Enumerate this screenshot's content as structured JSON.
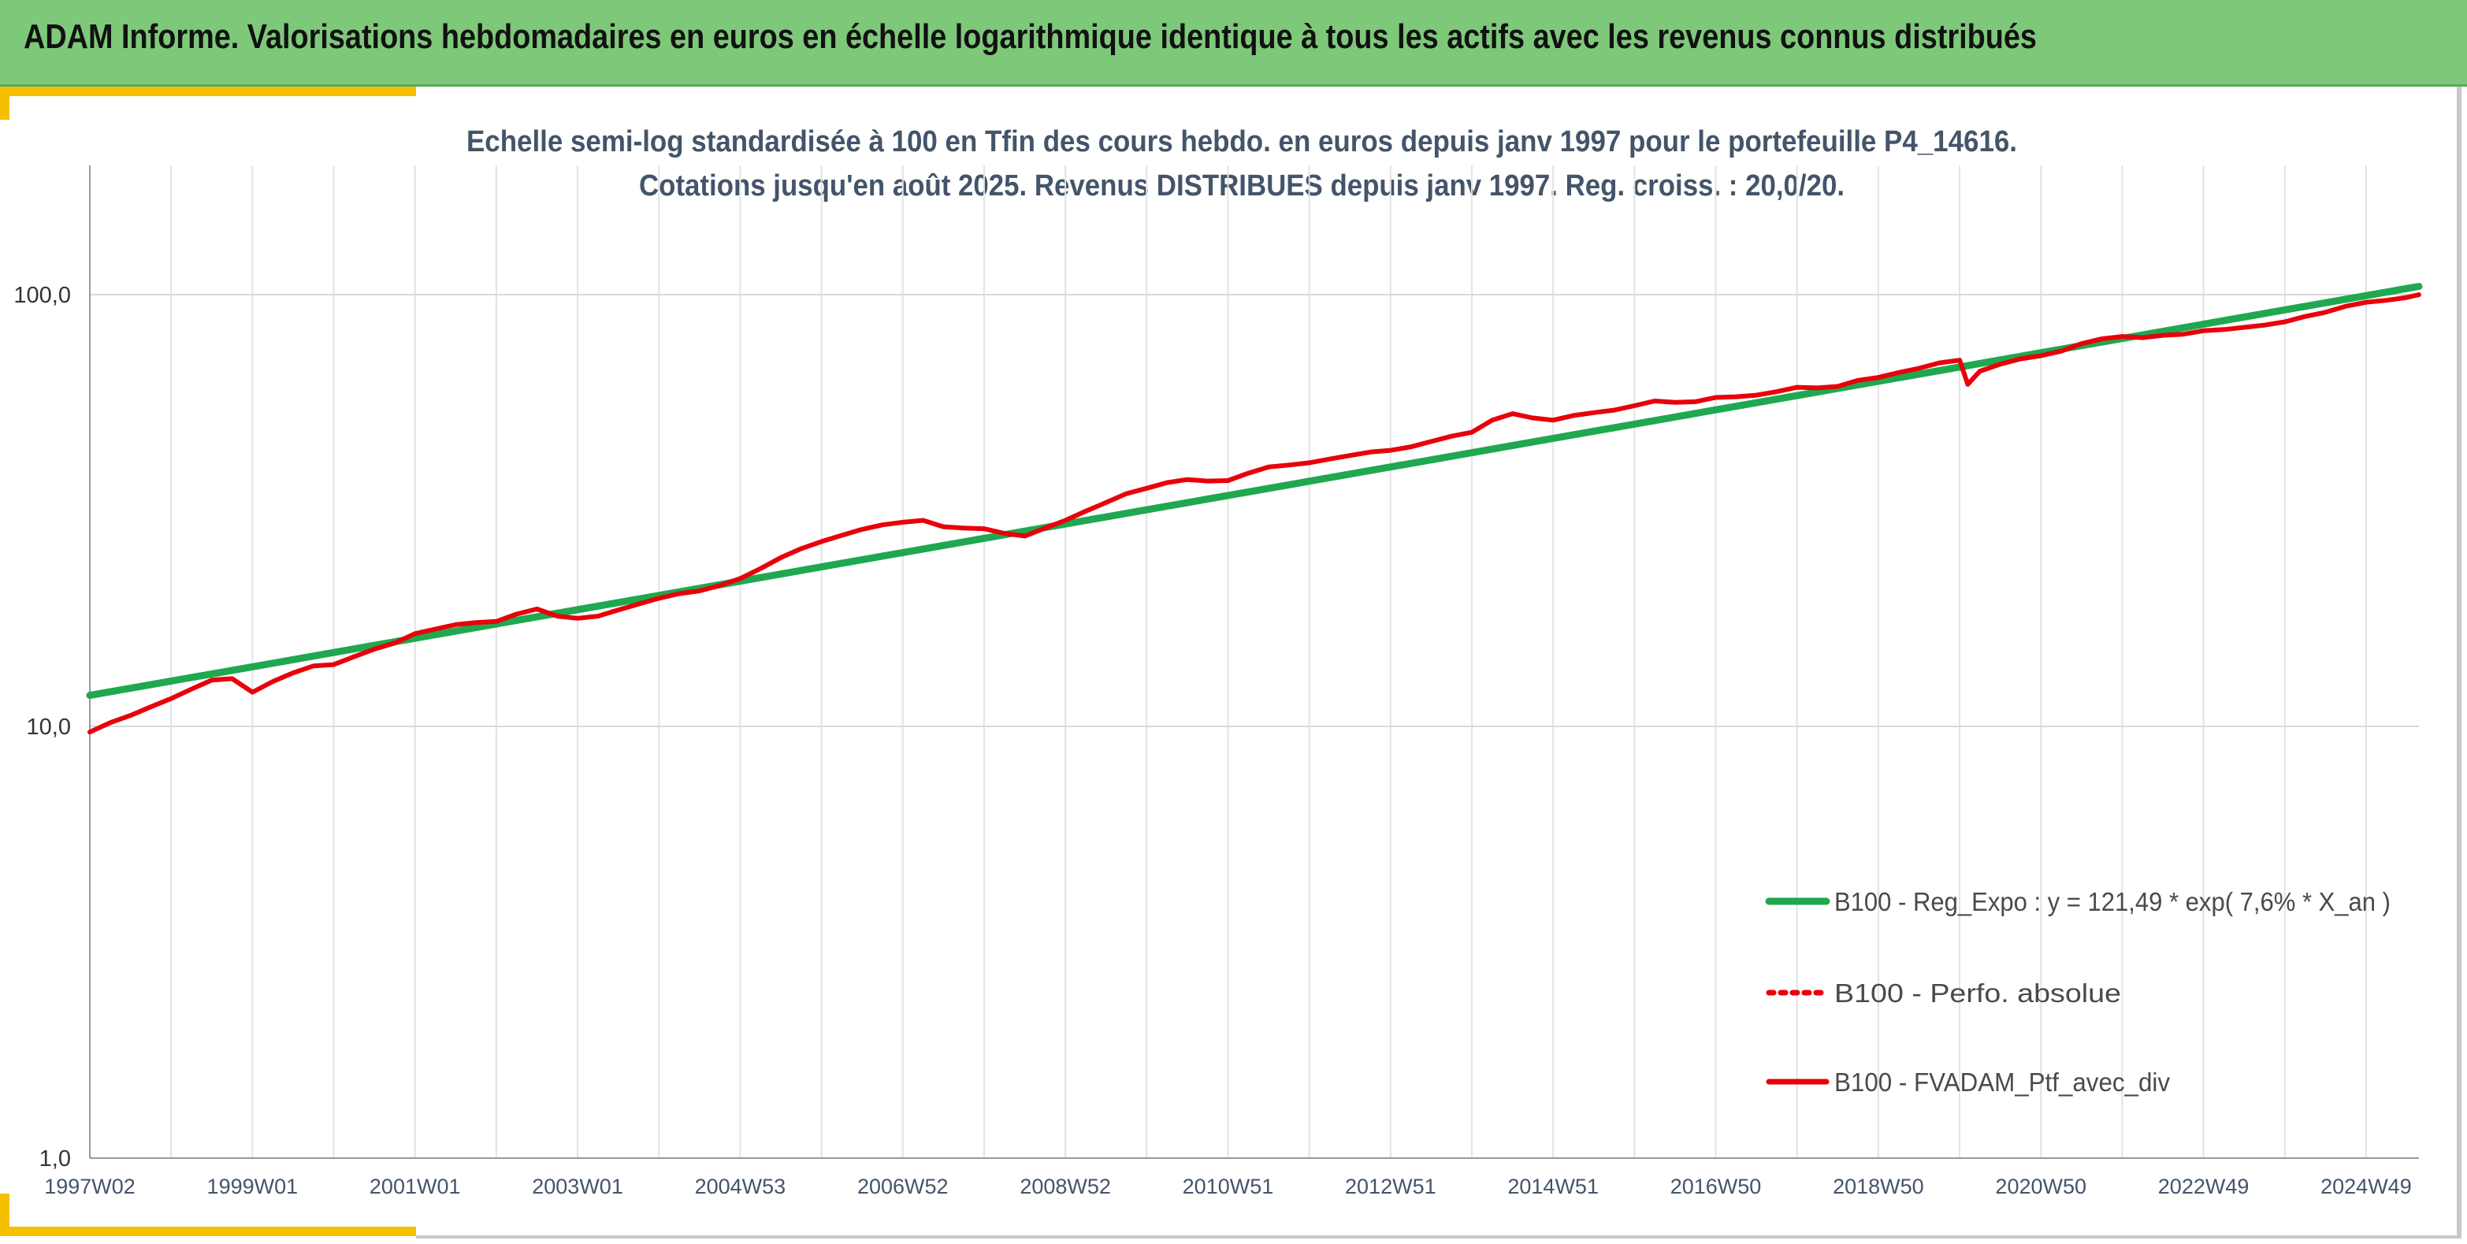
{
  "header": {
    "title": "ADAM Informe. Valorisations hebdomadaires en euros en échelle logarithmique identique à tous les actifs avec les revenus connus distribués"
  },
  "colors": {
    "header_bg": "#7ec87a",
    "accent": "#f5c000",
    "regression": "#1fa84f",
    "portfolio": "#e8000b"
  },
  "chart_data": {
    "type": "line",
    "title_lines": [
      "Echelle semi-log standardisée à 100 en Tfin des cours hebdo. en euros depuis janv 1997 pour le portefeuille P4_14616.",
      "Cotations jusqu'en août 2025. Revenus DISTRIBUES depuis janv 1997. Reg. croiss. : 20,0/20."
    ],
    "y_scale": "log",
    "ylim": [
      1,
      200
    ],
    "y_ticks": [
      {
        "value": 1,
        "label": "1,0"
      },
      {
        "value": 10,
        "label": "10,0"
      },
      {
        "value": 100,
        "label": "100,0"
      }
    ],
    "xlim": [
      1997.0,
      2025.65
    ],
    "x_ticks": [
      {
        "year": 1997.0,
        "label": "1997W02"
      },
      {
        "year": 1999.0,
        "label": "1999W01"
      },
      {
        "year": 2001.0,
        "label": "2001W01"
      },
      {
        "year": 2003.0,
        "label": "2003W01"
      },
      {
        "year": 2005.0,
        "label": "2004W53"
      },
      {
        "year": 2007.0,
        "label": "2006W52"
      },
      {
        "year": 2009.0,
        "label": "2008W52"
      },
      {
        "year": 2011.0,
        "label": "2010W51"
      },
      {
        "year": 2013.0,
        "label": "2012W51"
      },
      {
        "year": 2015.0,
        "label": "2014W51"
      },
      {
        "year": 2017.0,
        "label": "2016W50"
      },
      {
        "year": 2019.0,
        "label": "2018W50"
      },
      {
        "year": 2021.0,
        "label": "2020W50"
      },
      {
        "year": 2023.0,
        "label": "2022W49"
      },
      {
        "year": 2025.0,
        "label": "2024W49"
      }
    ],
    "legend_position": "right",
    "series": [
      {
        "name": "B100 - Reg_Expo : y = 121,49 * exp( 7,6% *  X_an )",
        "style": "solid-thick",
        "color": "#1fa84f",
        "x": [
          1997.0,
          2025.65
        ],
        "y": [
          11.8,
          104.5
        ]
      },
      {
        "name": "B100 - Perfo. absolue",
        "style": "dotted",
        "color": "#e8000b",
        "x": [],
        "y": []
      },
      {
        "name": "B100 - FVADAM_Ptf_avec_div",
        "style": "solid",
        "color": "#e8000b",
        "x": [
          1997.0,
          1997.25,
          1997.5,
          1997.75,
          1998.0,
          1998.25,
          1998.5,
          1998.75,
          1999.0,
          1999.25,
          1999.5,
          1999.75,
          2000.0,
          2000.25,
          2000.5,
          2000.75,
          2001.0,
          2001.25,
          2001.5,
          2001.75,
          2002.0,
          2002.25,
          2002.5,
          2002.75,
          2003.0,
          2003.25,
          2003.5,
          2003.75,
          2004.0,
          2004.25,
          2004.5,
          2004.75,
          2005.0,
          2005.25,
          2005.5,
          2005.75,
          2006.0,
          2006.25,
          2006.5,
          2006.75,
          2007.0,
          2007.25,
          2007.5,
          2007.75,
          2008.0,
          2008.25,
          2008.5,
          2008.75,
          2009.0,
          2009.25,
          2009.5,
          2009.75,
          2010.0,
          2010.25,
          2010.5,
          2010.75,
          2011.0,
          2011.25,
          2011.5,
          2011.75,
          2012.0,
          2012.25,
          2012.5,
          2012.75,
          2013.0,
          2013.25,
          2013.5,
          2013.75,
          2014.0,
          2014.25,
          2014.5,
          2014.75,
          2015.0,
          2015.25,
          2015.5,
          2015.75,
          2016.0,
          2016.25,
          2016.5,
          2016.75,
          2017.0,
          2017.25,
          2017.5,
          2017.75,
          2018.0,
          2018.25,
          2018.5,
          2018.75,
          2019.0,
          2019.25,
          2019.5,
          2019.75,
          2020.0,
          2020.1,
          2020.25,
          2020.5,
          2020.75,
          2021.0,
          2021.25,
          2021.5,
          2021.75,
          2022.0,
          2022.25,
          2022.5,
          2022.75,
          2023.0,
          2023.25,
          2023.5,
          2023.75,
          2024.0,
          2024.25,
          2024.5,
          2024.75,
          2025.0,
          2025.25,
          2025.5,
          2025.65
        ],
        "y": [
          9.7,
          10.2,
          10.6,
          11.1,
          11.6,
          12.2,
          12.8,
          12.9,
          12.0,
          12.7,
          13.3,
          13.8,
          13.9,
          14.5,
          15.1,
          15.6,
          16.4,
          16.8,
          17.2,
          17.4,
          17.5,
          18.2,
          18.7,
          18.0,
          17.8,
          18.0,
          18.6,
          19.2,
          19.8,
          20.3,
          20.6,
          21.2,
          22.0,
          23.2,
          24.6,
          25.8,
          26.8,
          27.7,
          28.6,
          29.3,
          29.7,
          30.0,
          29.0,
          28.8,
          28.7,
          28.0,
          27.6,
          28.8,
          30.0,
          31.5,
          33.0,
          34.6,
          35.6,
          36.7,
          37.3,
          37.0,
          37.1,
          38.6,
          39.9,
          40.3,
          40.8,
          41.6,
          42.4,
          43.2,
          43.6,
          44.4,
          45.7,
          47.0,
          48.0,
          51.2,
          53.0,
          51.8,
          51.2,
          52.5,
          53.3,
          54.0,
          55.3,
          56.7,
          56.3,
          56.5,
          57.8,
          58.0,
          58.5,
          59.6,
          61.0,
          60.8,
          61.3,
          63.3,
          64.3,
          66.0,
          67.5,
          69.5,
          70.5,
          62.0,
          66.5,
          69.0,
          71.0,
          72.2,
          74.0,
          77.0,
          79.0,
          80.0,
          79.5,
          80.5,
          81.0,
          82.5,
          83.0,
          84.0,
          85.0,
          86.5,
          89.0,
          91.0,
          94.0,
          96.0,
          97.0,
          98.5,
          100.0
        ]
      }
    ]
  }
}
